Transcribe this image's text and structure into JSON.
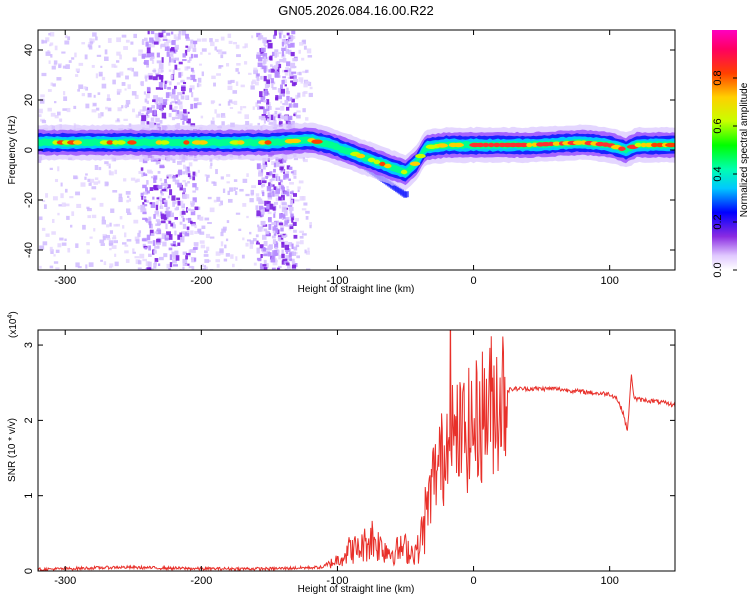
{
  "title": "GN05.2026.084.16.00.R22",
  "chart_data": [
    {
      "type": "heatmap",
      "xlabel": "Height of straight line (km)",
      "ylabel": "Frequency (Hz)",
      "xlim": [
        -320,
        148
      ],
      "ylim": [
        -48,
        48
      ],
      "xticks": [
        -300,
        -200,
        -100,
        0,
        100
      ],
      "xtick_labels": [
        "-300",
        "-200",
        "-100",
        "0",
        "100"
      ],
      "yticks": [
        -40,
        -20,
        0,
        20,
        40
      ],
      "ytick_labels": [
        "-40",
        "-20",
        "0",
        "20",
        "40"
      ],
      "colorbar": {
        "label": "Normalized spectral amplitude",
        "range": [
          0,
          1
        ],
        "ticks": [
          0.0,
          0.2,
          0.4,
          0.6,
          0.8
        ],
        "tick_labels": [
          "0.0",
          "0.2",
          "0.4",
          "0.6",
          "0.8"
        ],
        "colormap": "rainbow"
      },
      "ridge": {
        "x": [
          -320,
          -250,
          -200,
          -150,
          -120,
          -105,
          -90,
          -75,
          -60,
          -50,
          -42,
          -35,
          -20,
          0,
          40,
          80,
          100,
          112,
          120,
          148
        ],
        "y": [
          3,
          3,
          3,
          3,
          4,
          2,
          -1,
          -4,
          -7,
          -9,
          -5,
          1,
          2,
          2,
          2,
          3,
          2,
          0,
          2,
          2
        ]
      },
      "noise_bands": [
        {
          "x_from": -245,
          "x_to": -205
        },
        {
          "x_from": -160,
          "x_to": -132
        }
      ]
    },
    {
      "type": "line",
      "xlabel": "Height of straight line (km)",
      "ylabel": "SNR (10 * v/v)",
      "y_multiplier": "(x10",
      "y_multiplier_exp": "4",
      "xlim": [
        -320,
        148
      ],
      "ylim": [
        0,
        3.2
      ],
      "xticks": [
        -300,
        -200,
        -100,
        0,
        100
      ],
      "xtick_labels": [
        "-300",
        "-200",
        "-100",
        "0",
        "100"
      ],
      "yticks": [
        0,
        1,
        2,
        3
      ],
      "ytick_labels": [
        "0",
        "1",
        "2",
        "3"
      ],
      "line_color": "#e8302a",
      "series": [
        {
          "x": [
            -320,
            -260,
            -200,
            -150,
            -110,
            -100,
            -95,
            -90,
            -85,
            -80,
            -75,
            -70,
            -65,
            -60,
            -55,
            -50,
            -45,
            -40,
            -35,
            -30,
            -25,
            -20,
            -17,
            -15,
            -12,
            -10,
            -5,
            0,
            5,
            10,
            15,
            20,
            25,
            30,
            40,
            50,
            60,
            70,
            80,
            90,
            100,
            105,
            110,
            113,
            116,
            118,
            120,
            125,
            135,
            148
          ],
          "y": [
            0.02,
            0.05,
            0.03,
            0.03,
            0.05,
            0.15,
            0.22,
            0.3,
            0.28,
            0.35,
            0.45,
            0.35,
            0.3,
            0.25,
            0.28,
            0.3,
            0.25,
            0.3,
            0.75,
            1.2,
            1.45,
            1.55,
            3.1,
            1.6,
            1.75,
            1.8,
            1.85,
            1.9,
            2.05,
            2.15,
            2.25,
            2.35,
            2.4,
            2.42,
            2.42,
            2.42,
            2.42,
            2.4,
            2.38,
            2.36,
            2.35,
            2.3,
            2.1,
            1.85,
            2.6,
            2.3,
            2.28,
            2.27,
            2.25,
            2.2
          ]
        }
      ]
    }
  ]
}
